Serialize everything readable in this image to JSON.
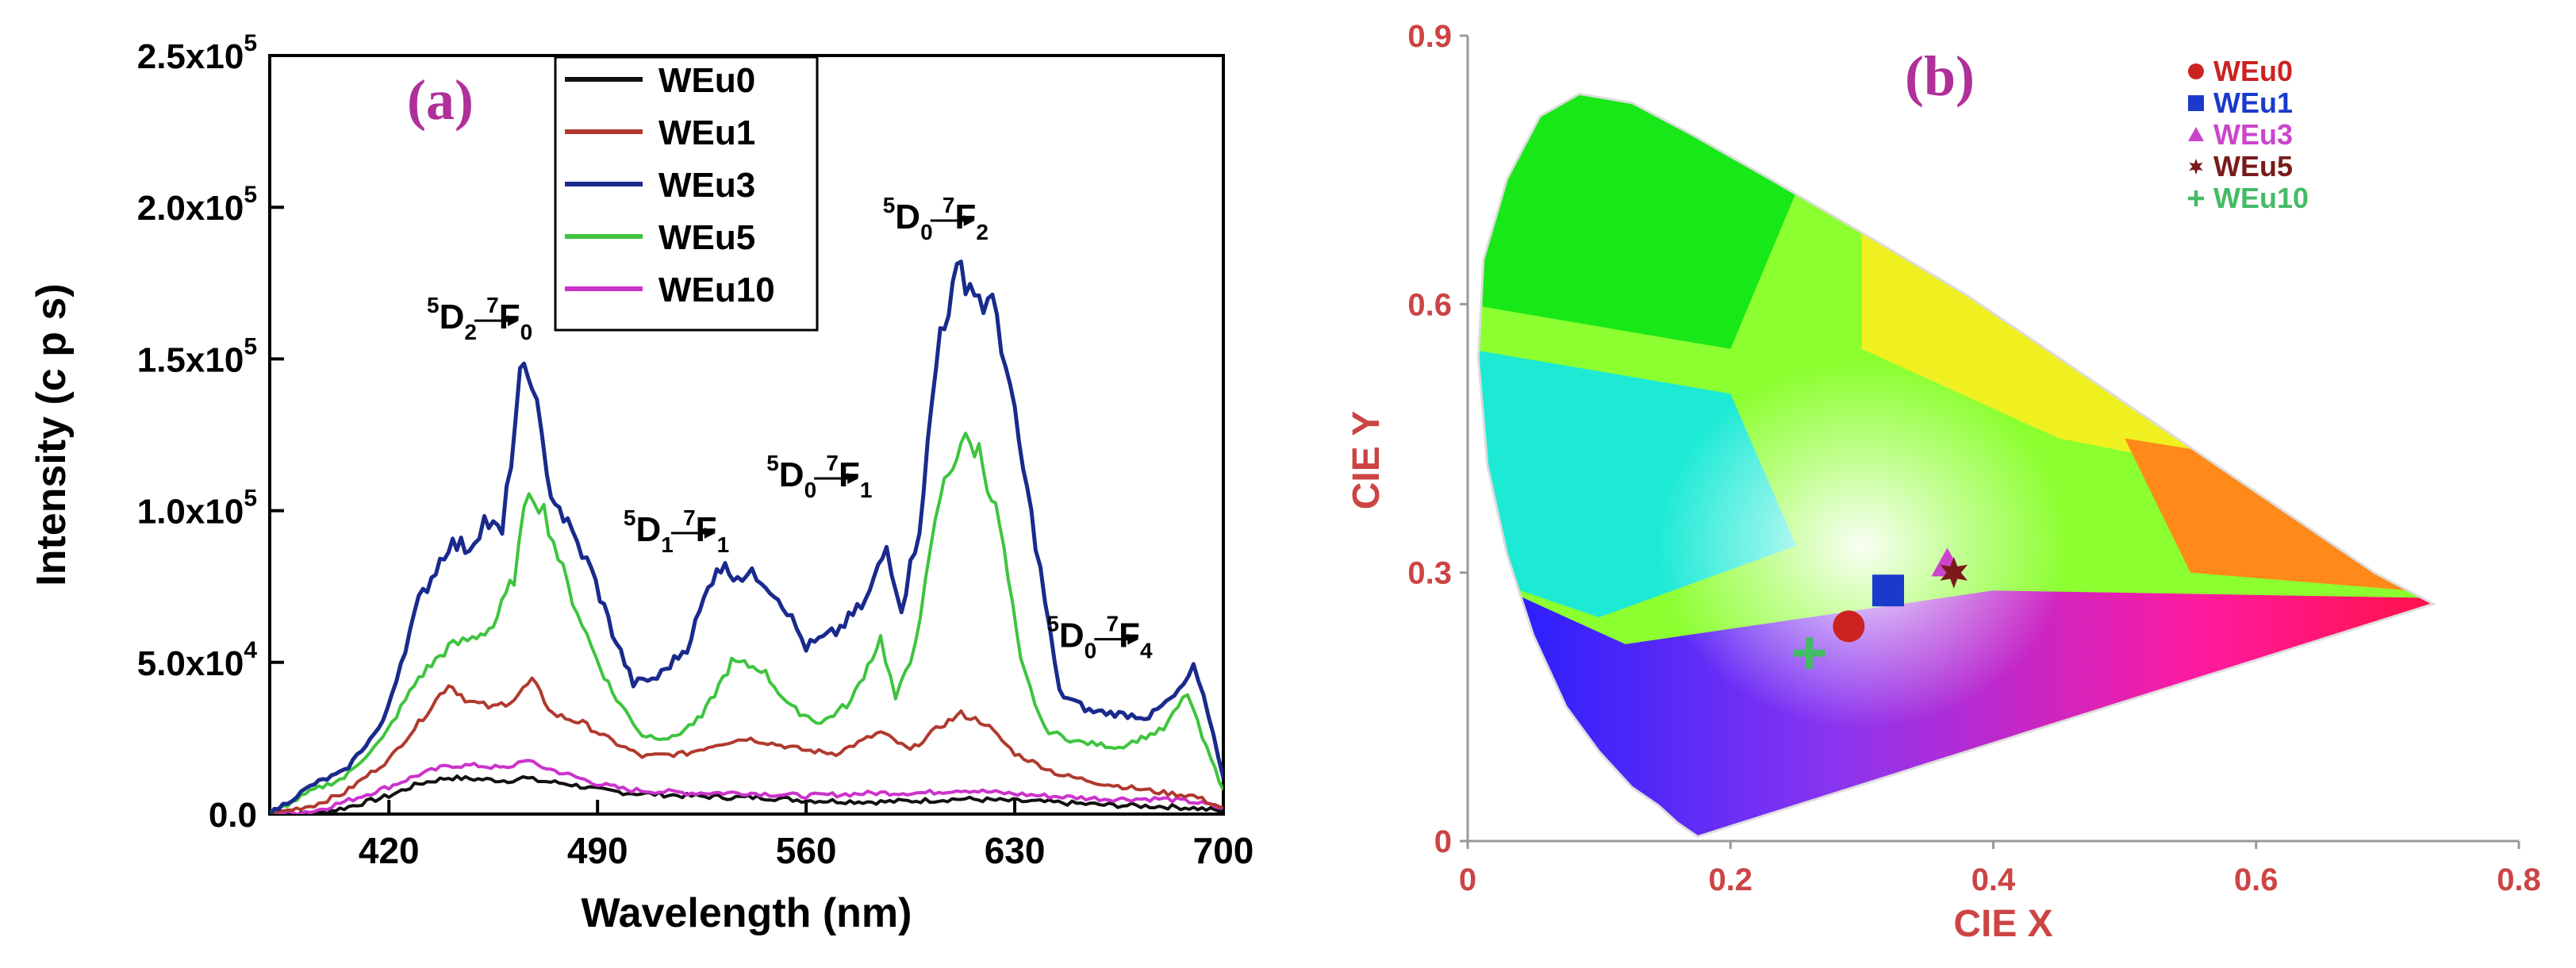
{
  "chart_data": [
    {
      "panel_label": "(a)",
      "type": "line",
      "xlabel": "Wavelength (nm)",
      "ylabel": "Intensity (c p s)",
      "xlim": [
        380,
        700
      ],
      "ylim": [
        0,
        250000
      ],
      "x_ticks": [
        420,
        490,
        560,
        630,
        700
      ],
      "x_tick_labels": [
        "420",
        "490",
        "560",
        "630",
        "700"
      ],
      "y_ticks": [
        0,
        50000,
        100000,
        150000,
        200000,
        250000
      ],
      "y_tick_labels": [
        {
          "base": "0.0",
          "exp": ""
        },
        {
          "base": "5.0x10",
          "exp": "4"
        },
        {
          "base": "1.0x10",
          "exp": "5"
        },
        {
          "base": "1.5x10",
          "exp": "5"
        },
        {
          "base": "2.0x10",
          "exp": "5"
        },
        {
          "base": "2.5x10",
          "exp": "5"
        }
      ],
      "legend": {
        "placement": "top-center"
      },
      "series": [
        {
          "name": "WEu0",
          "color": "#111111",
          "x": [
            380,
            395,
            405,
            420,
            430,
            440,
            450,
            460,
            465,
            470,
            480,
            490,
            500,
            520,
            535,
            545,
            560,
            585,
            600,
            612,
            625,
            640,
            660,
            680,
            690,
            700
          ],
          "values": [
            0,
            0,
            2000,
            6000,
            10000,
            12000,
            11500,
            11000,
            12000,
            11000,
            10000,
            8000,
            7000,
            6000,
            5500,
            5500,
            4500,
            4000,
            4500,
            5000,
            4500,
            4000,
            3000,
            2500,
            2000,
            1000
          ]
        },
        {
          "name": "WEu1",
          "color": "#b03a2e",
          "x": [
            380,
            395,
            405,
            420,
            430,
            440,
            447,
            455,
            462,
            468,
            475,
            485,
            495,
            505,
            520,
            530,
            540,
            550,
            560,
            570,
            585,
            595,
            605,
            612,
            620,
            630,
            645,
            660,
            680,
            690,
            700
          ],
          "values": [
            0,
            3000,
            7000,
            18000,
            30000,
            43000,
            37000,
            35000,
            38000,
            44000,
            33000,
            30000,
            24000,
            19000,
            20000,
            23000,
            25000,
            23000,
            21000,
            20000,
            27000,
            21000,
            29000,
            33000,
            30000,
            20000,
            13000,
            10000,
            7000,
            6000,
            2000
          ]
        },
        {
          "name": "WEu3",
          "color": "#1a2a8c",
          "x": [
            380,
            395,
            405,
            418,
            430,
            440,
            447,
            452,
            458,
            464,
            468,
            473,
            480,
            488,
            495,
            502,
            510,
            520,
            530,
            537,
            545,
            552,
            560,
            570,
            580,
            587,
            592,
            598,
            605,
            612,
            618,
            624,
            630,
            637,
            645,
            655,
            665,
            675,
            685,
            690,
            695,
            700
          ],
          "values": [
            0,
            10000,
            14000,
            30000,
            70000,
            89000,
            88000,
            97000,
            92000,
            143000,
            145000,
            110000,
            95000,
            80000,
            60000,
            43000,
            45000,
            55000,
            82000,
            79000,
            78000,
            70000,
            55000,
            60000,
            70000,
            88000,
            68000,
            95000,
            160000,
            180000,
            170000,
            165000,
            130000,
            90000,
            40000,
            34000,
            33000,
            32000,
            40000,
            48000,
            33000,
            12000
          ]
        },
        {
          "name": "WEu5",
          "color": "#3ec43e",
          "x": [
            380,
            395,
            405,
            418,
            430,
            440,
            448,
            455,
            462,
            467,
            472,
            480,
            488,
            495,
            505,
            515,
            525,
            535,
            545,
            555,
            565,
            575,
            585,
            590,
            595,
            600,
            605,
            612,
            618,
            625,
            632,
            640,
            650,
            665,
            680,
            688,
            693,
            700
          ],
          "values": [
            0,
            8000,
            12000,
            25000,
            45000,
            55000,
            58000,
            62000,
            78000,
            108000,
            100000,
            75000,
            55000,
            40000,
            26000,
            25000,
            32000,
            50000,
            48000,
            35000,
            30000,
            37000,
            58000,
            38000,
            50000,
            75000,
            105000,
            123000,
            120000,
            95000,
            50000,
            28000,
            24000,
            22000,
            28000,
            40000,
            25000,
            8000
          ]
        },
        {
          "name": "WEu10",
          "color": "#cc33cc",
          "x": [
            380,
            395,
            405,
            420,
            430,
            440,
            450,
            460,
            465,
            470,
            480,
            490,
            500,
            520,
            540,
            560,
            585,
            600,
            612,
            625,
            640,
            660,
            680,
            690,
            700
          ],
          "values": [
            0,
            1000,
            4000,
            9000,
            13000,
            16000,
            16000,
            15000,
            18000,
            16000,
            13000,
            10000,
            8000,
            7000,
            7000,
            6000,
            7000,
            7000,
            8000,
            7000,
            6000,
            5000,
            5000,
            4000,
            2000
          ]
        }
      ],
      "annotations": [
        {
          "upper": "5",
          "lower": "2",
          "lower2": "0",
          "text_a": "D",
          "text_b": "F",
          "upper2": "7",
          "anchor_x": 462,
          "anchor_y": 160000
        },
        {
          "upper": "5",
          "lower": "1",
          "lower2": "1",
          "text_a": "D",
          "text_b": "F",
          "upper2": "7",
          "anchor_x": 528,
          "anchor_y": 90000
        },
        {
          "upper": "5",
          "lower": "0",
          "lower2": "1",
          "text_a": "D",
          "text_b": "F",
          "upper2": "7",
          "anchor_x": 576,
          "anchor_y": 108000
        },
        {
          "upper": "5",
          "lower": "0",
          "lower2": "2",
          "text_a": "D",
          "text_b": "F",
          "upper2": "7",
          "anchor_x": 615,
          "anchor_y": 193000
        },
        {
          "upper": "5",
          "lower": "0",
          "lower2": "4",
          "text_a": "D",
          "text_b": "F",
          "upper2": "7",
          "anchor_x": 670,
          "anchor_y": 55000
        }
      ]
    },
    {
      "panel_label": "(b)",
      "type": "scatter",
      "xlabel": "CIE X",
      "ylabel": "CIE Y",
      "xlim": [
        0,
        0.8
      ],
      "ylim": [
        0,
        0.9
      ],
      "x_ticks": [
        0,
        0.2,
        0.4,
        0.6,
        0.8
      ],
      "x_tick_labels": [
        "0",
        "0.2",
        "0.4",
        "0.6",
        "0.8"
      ],
      "y_ticks": [
        0,
        0.3,
        0.6,
        0.9
      ],
      "y_tick_labels": [
        "0",
        "0.3",
        "0.6",
        "0.9"
      ],
      "legend": {
        "placement": "top-right"
      },
      "series": [
        {
          "name": "WEu0",
          "color": "#cc2222",
          "marker": "circle",
          "x": 0.29,
          "y": 0.24
        },
        {
          "name": "WEu1",
          "color": "#1a3acc",
          "marker": "square",
          "x": 0.32,
          "y": 0.28
        },
        {
          "name": "WEu3",
          "color": "#cc44cc",
          "marker": "triangle",
          "x": 0.365,
          "y": 0.31
        },
        {
          "name": "WEu5",
          "color": "#7a1a1a",
          "marker": "star",
          "x": 0.37,
          "y": 0.3
        },
        {
          "name": "WEu10",
          "color": "#44bb66",
          "marker": "plus",
          "x": 0.26,
          "y": 0.21
        }
      ]
    }
  ]
}
